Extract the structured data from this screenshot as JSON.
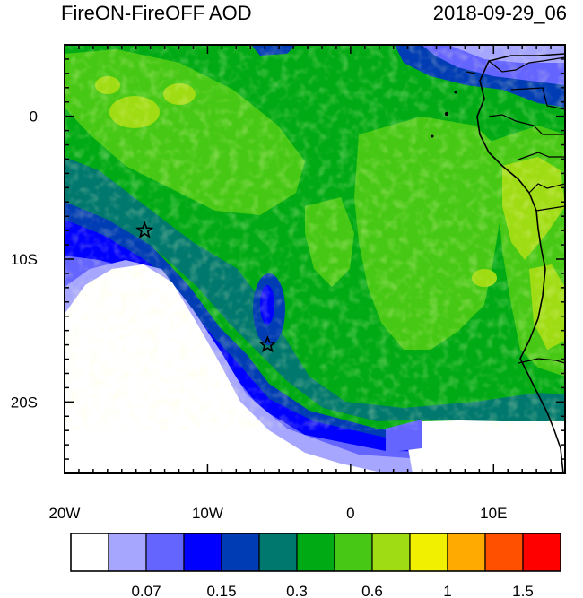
{
  "title_left": "FireON-FireOFF AOD",
  "title_right": "2018-09-29_06",
  "x_ticks": [
    {
      "label": "20W",
      "lon": -20
    },
    {
      "label": "10W",
      "lon": -10
    },
    {
      "label": "0",
      "lon": 0
    },
    {
      "label": "10E",
      "lon": 10
    }
  ],
  "y_ticks": [
    {
      "label": "0",
      "lat": 0
    },
    {
      "label": "10S",
      "lat": -10
    },
    {
      "label": "20S",
      "lat": -20
    }
  ],
  "lon_range": [
    -20,
    15
  ],
  "lat_range": [
    -25,
    5
  ],
  "markers": [
    {
      "name": "star-marker-1",
      "lon": -14.4,
      "lat": -8.0
    },
    {
      "name": "star-marker-2",
      "lon": -5.8,
      "lat": -16.0
    }
  ],
  "colorbar": {
    "colors": [
      "#ffffff",
      "#a6a6ff",
      "#6464ff",
      "#0000ff",
      "#003cb4",
      "#00786e",
      "#00aa14",
      "#46c814",
      "#a0dc14",
      "#f0f000",
      "#ffaa00",
      "#ff5000",
      "#ff0000"
    ],
    "labels": [
      {
        "text": "0.07",
        "boundary": 2
      },
      {
        "text": "0.15",
        "boundary": 4
      },
      {
        "text": "0.3",
        "boundary": 6
      },
      {
        "text": "0.6",
        "boundary": 8
      },
      {
        "text": "1",
        "boundary": 10
      },
      {
        "text": "1.5",
        "boundary": 12
      }
    ]
  }
}
